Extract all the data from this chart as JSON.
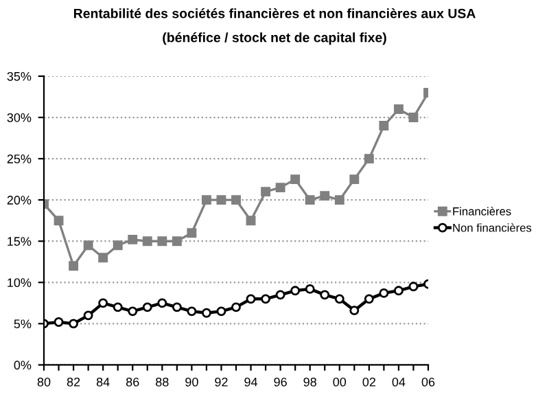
{
  "chart_data": {
    "type": "line",
    "title": "Rentabilité des sociétés financières et non financières aux USA",
    "subtitle": "(bénéfice / stock net de capital fixe)",
    "categories": [
      "80",
      null,
      "82",
      null,
      "84",
      null,
      "86",
      null,
      "88",
      null,
      "90",
      null,
      "92",
      null,
      "94",
      null,
      "96",
      null,
      "98",
      null,
      "00",
      null,
      "02",
      null,
      "04",
      null,
      "06"
    ],
    "series": [
      {
        "name": "Financières",
        "color": "#808080",
        "marker": "square",
        "values": [
          19.5,
          17.5,
          12,
          14.5,
          13,
          14.5,
          15.2,
          15,
          15,
          15,
          16,
          20,
          20,
          20,
          17.5,
          21,
          21.5,
          22.5,
          20,
          20.5,
          20,
          22.5,
          25,
          29,
          31,
          30,
          33
        ]
      },
      {
        "name": "Non financières",
        "color": "#000000",
        "marker": "circle",
        "values": [
          5,
          5.2,
          5,
          6,
          7.5,
          7,
          6.5,
          7,
          7.5,
          7,
          6.5,
          6.3,
          6.5,
          7,
          8,
          8,
          8.5,
          9,
          9.2,
          8.5,
          8,
          6.6,
          8,
          8.7,
          9,
          9.5,
          9.8
        ]
      }
    ],
    "ylim": [
      0,
      35
    ],
    "yticks": [
      {
        "value": 0,
        "label": "0%"
      },
      {
        "value": 5,
        "label": "5%"
      },
      {
        "value": 10,
        "label": "10%"
      },
      {
        "value": 15,
        "label": "15%"
      },
      {
        "value": 20,
        "label": "20%"
      },
      {
        "value": 25,
        "label": "25%"
      },
      {
        "value": 30,
        "label": "30%"
      },
      {
        "value": 35,
        "label": "35%"
      }
    ],
    "grid": "y",
    "legend": "right",
    "line_style": "solid"
  }
}
